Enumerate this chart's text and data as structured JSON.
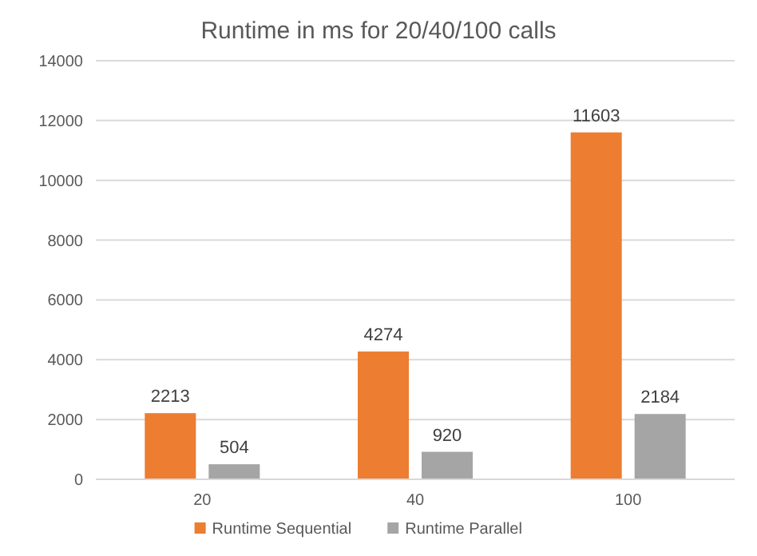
{
  "chart_data": {
    "type": "bar",
    "title": "Runtime in ms for 20/40/100 calls",
    "categories": [
      "20",
      "40",
      "100"
    ],
    "series": [
      {
        "name": "Runtime Sequential",
        "color": "#ed7d31",
        "values": [
          2213,
          4274,
          11603
        ]
      },
      {
        "name": "Runtime Parallel",
        "color": "#a5a5a5",
        "values": [
          504,
          920,
          2184
        ]
      }
    ],
    "ylim": [
      0,
      14000
    ],
    "yticks": [
      0,
      2000,
      4000,
      6000,
      8000,
      10000,
      12000,
      14000
    ],
    "grid": "y",
    "legend": "bottom",
    "data_labels": true
  }
}
